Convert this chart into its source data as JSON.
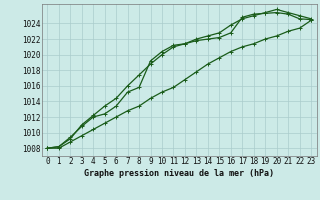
{
  "title": "Graphe pression niveau de la mer (hPa)",
  "bg_color": "#cceae7",
  "grid_color": "#aacccc",
  "line_color": "#1a5c1a",
  "xlim_min": -0.5,
  "xlim_max": 23.5,
  "ylim_min": 1007.0,
  "ylim_max": 1026.5,
  "yticks": [
    1008,
    1010,
    1012,
    1014,
    1016,
    1018,
    1020,
    1022,
    1024
  ],
  "xticks": [
    0,
    1,
    2,
    3,
    4,
    5,
    6,
    7,
    8,
    9,
    10,
    11,
    12,
    13,
    14,
    15,
    16,
    17,
    18,
    19,
    20,
    21,
    22,
    23
  ],
  "series": [
    [
      1008.0,
      1008.2,
      1009.4,
      1010.8,
      1012.0,
      1012.4,
      1013.4,
      1015.2,
      1015.8,
      1019.2,
      1020.4,
      1021.2,
      1021.4,
      1021.8,
      1022.0,
      1022.2,
      1022.8,
      1024.8,
      1025.2,
      1025.3,
      1025.4,
      1025.2,
      1024.6,
      1024.5
    ],
    [
      1008.0,
      1008.2,
      1009.2,
      1011.0,
      1012.2,
      1013.4,
      1014.4,
      1016.0,
      1017.4,
      1018.8,
      1020.0,
      1021.0,
      1021.4,
      1022.0,
      1022.4,
      1022.8,
      1023.8,
      1024.6,
      1025.0,
      1025.4,
      1025.8,
      1025.4,
      1025.0,
      1024.6
    ],
    [
      1008.0,
      1008.0,
      1008.8,
      1009.6,
      1010.4,
      1011.2,
      1012.0,
      1012.8,
      1013.4,
      1014.4,
      1015.2,
      1015.8,
      1016.8,
      1017.8,
      1018.8,
      1019.6,
      1020.4,
      1021.0,
      1021.4,
      1022.0,
      1022.4,
      1023.0,
      1023.4,
      1024.4
    ]
  ],
  "tick_fontsize": 5.5,
  "label_fontsize": 6.0,
  "linewidth": 0.9,
  "markersize": 3.0
}
